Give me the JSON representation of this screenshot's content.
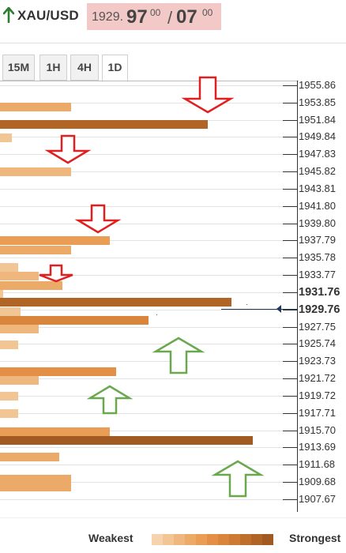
{
  "header": {
    "symbol": "XAU/USD",
    "price_prefix": "1929.",
    "bid_big": "97",
    "bid_sup": "00",
    "separator": "/",
    "ask_big": "07",
    "ask_sup": "00",
    "trend_icon": "arrow-up-icon",
    "trend_color": "#2e7d32",
    "quote_bg": "#f2c9c6"
  },
  "tabs": [
    {
      "label": "15M",
      "active": false
    },
    {
      "label": "1H",
      "active": false
    },
    {
      "label": "4H",
      "active": false
    },
    {
      "label": "1D",
      "active": true
    }
  ],
  "price_levels": [
    "1955.86",
    "1953.85",
    "1951.84",
    "1949.84",
    "1947.83",
    "1945.82",
    "1943.81",
    "1941.80",
    "1939.80",
    "1937.79",
    "1935.78",
    "1933.77",
    "1931.76",
    "1929.76",
    "1927.75",
    "1925.74",
    "1923.73",
    "1921.72",
    "1919.72",
    "1917.71",
    "1915.70",
    "1913.69",
    "1911.68",
    "1909.68",
    "1907.67"
  ],
  "current_price": "1929.76",
  "current_price_label": "1929.76",
  "level_1931": "1931.76",
  "resistance_arrow_color": "#e02020",
  "support_arrow_color": "#6aa84f",
  "legend": {
    "weakest": "Weakest",
    "strongest": "Strongest",
    "scale_colors": [
      "#f6d3ae",
      "#f2c595",
      "#efb77e",
      "#ecaa68",
      "#e99d55",
      "#e39046",
      "#d9853b",
      "#cd7a33",
      "#bf6f2c",
      "#b06426",
      "#a15a21"
    ]
  },
  "chart_data": {
    "type": "bar",
    "title": "",
    "ylabel": "",
    "xlabel": "",
    "current_price": 1929.76,
    "bars": [
      {
        "price": 1953.3,
        "strength": 0.24,
        "level": 3
      },
      {
        "price": 1951.3,
        "strength": 0.7,
        "level": 9
      },
      {
        "price": 1949.7,
        "strength": 0.04,
        "level": 1
      },
      {
        "price": 1945.8,
        "strength": 0.24,
        "level": 2
      },
      {
        "price": 1937.8,
        "strength": 0.37,
        "level": 4
      },
      {
        "price": 1936.7,
        "strength": 0.24,
        "level": 3
      },
      {
        "price": 1934.6,
        "strength": 0.06,
        "level": 1
      },
      {
        "price": 1933.6,
        "strength": 0.13,
        "level": 2
      },
      {
        "price": 1932.5,
        "strength": 0.21,
        "level": 3
      },
      {
        "price": 1931.5,
        "strength": 0.01,
        "level": 1
      },
      {
        "price": 1930.6,
        "strength": 0.78,
        "level": 9
      },
      {
        "price": 1929.5,
        "strength": 0.07,
        "level": 1
      },
      {
        "price": 1928.5,
        "strength": 0.5,
        "level": 6
      },
      {
        "price": 1927.5,
        "strength": 0.13,
        "level": 2
      },
      {
        "price": 1925.6,
        "strength": 0.06,
        "level": 1
      },
      {
        "price": 1922.5,
        "strength": 0.39,
        "level": 5
      },
      {
        "price": 1921.5,
        "strength": 0.13,
        "level": 2
      },
      {
        "price": 1919.6,
        "strength": 0.06,
        "level": 1
      },
      {
        "price": 1917.6,
        "strength": 0.06,
        "level": 1
      },
      {
        "price": 1915.5,
        "strength": 0.37,
        "level": 4
      },
      {
        "price": 1914.5,
        "strength": 0.85,
        "level": 10
      },
      {
        "price": 1912.5,
        "strength": 0.2,
        "level": 3
      },
      {
        "price": 1910.0,
        "strength": 0.24,
        "level": 3
      },
      {
        "price": 1909.0,
        "strength": 0.24,
        "level": 3
      }
    ],
    "resistance_arrows": [
      {
        "price": 1952.6,
        "size": "large",
        "strength": 0.7
      },
      {
        "price": 1946.7,
        "size": "medium",
        "strength": 0.23
      },
      {
        "price": 1938.6,
        "size": "medium",
        "strength": 0.33
      },
      {
        "price": 1932.9,
        "size": "small",
        "strength": 0.19
      }
    ],
    "support_arrows": [
      {
        "price": 1926.5,
        "size": "large",
        "strength": 0.6
      },
      {
        "price": 1920.9,
        "size": "medium",
        "strength": 0.37
      },
      {
        "price": 1912.1,
        "size": "large",
        "strength": 0.8
      }
    ]
  }
}
